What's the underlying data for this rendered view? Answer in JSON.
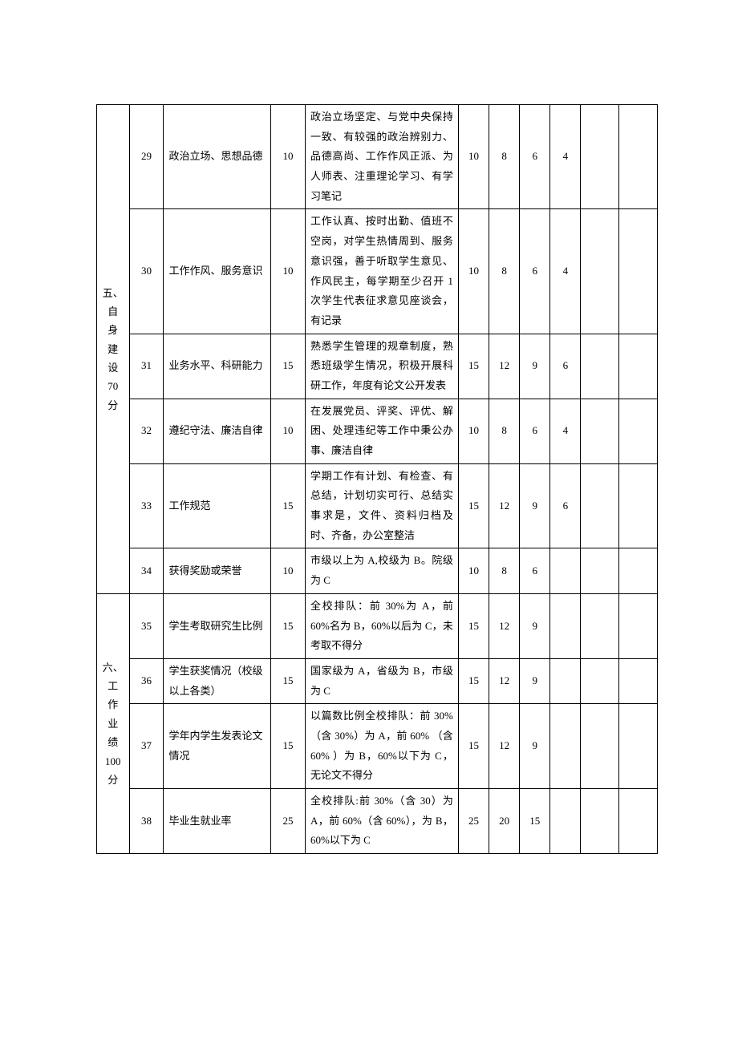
{
  "sections": [
    {
      "category": "五、自身建设70分",
      "category_lines": [
        "五、",
        "自",
        "身",
        "建",
        "设",
        "70",
        "分"
      ],
      "rows": [
        {
          "num": "29",
          "item": "政治立场、思想品德",
          "pts": "10",
          "desc": "政治立场坚定、与党中央保持一致、有较强的政治辨别力、品德高尚、工作作风正派、为人师表、注重理论学习、有学习笔记",
          "s1": "10",
          "s2": "8",
          "s3": "6",
          "s4": "4"
        },
        {
          "num": "30",
          "item": "工作作风、服务意识",
          "pts": "10",
          "desc": "工作认真、按时出勤、值班不空岗，对学生热情周到、服务意识强，善于听取学生意见、作风民主，每学期至少召开 1 次学生代表征求意见座谈会，有记录",
          "s1": "10",
          "s2": "8",
          "s3": "6",
          "s4": "4"
        },
        {
          "num": "31",
          "item": "业务水平、科研能力",
          "pts": "15",
          "desc": "熟悉学生管理的规章制度，熟悉班级学生情况，积极开展科研工作，年度有论文公开发表",
          "s1": "15",
          "s2": "12",
          "s3": "9",
          "s4": "6"
        },
        {
          "num": "32",
          "item": "遵纪守法、廉洁自律",
          "pts": "10",
          "desc": "在发展党员、评奖、评优、解困、处理违纪等工作中秉公办事、廉洁自律",
          "s1": "10",
          "s2": "8",
          "s3": "6",
          "s4": "4"
        },
        {
          "num": "33",
          "item": "工作规范",
          "pts": "15",
          "desc": "学期工作有计划、有检查、有总结，计划切实可行、总结实事求是，文件、资料归档及时、齐备，办公室整洁",
          "s1": "15",
          "s2": "12",
          "s3": "9",
          "s4": "6"
        },
        {
          "num": "34",
          "item": "获得奖励或荣誉",
          "pts": "10",
          "desc": "市级以上为 A,校级为 B。院级为 C",
          "s1": "10",
          "s2": "8",
          "s3": "6",
          "s4": ""
        }
      ]
    },
    {
      "category": "六、工作业绩100分",
      "category_lines": [
        "六、",
        "工",
        "作",
        "业",
        "绩",
        "100",
        "分"
      ],
      "rows": [
        {
          "num": "35",
          "item": "学生考取研究生比例",
          "pts": "15",
          "desc": "全校排队：前 30%为 A，前 60%名为 B，60%以后为 C，未考取不得分",
          "s1": "15",
          "s2": "12",
          "s3": "9",
          "s4": ""
        },
        {
          "num": "36",
          "item": "学生获奖情况（校级以上各类）",
          "pts": "15",
          "desc": "国家级为 A，省级为 B，市级为 C",
          "s1": "15",
          "s2": "12",
          "s3": "9",
          "s4": ""
        },
        {
          "num": "37",
          "item": "学年内学生发表论文情况",
          "pts": "15",
          "desc": "以篇数比例全校排队：前 30%（含 30%）为 A，前 60% （含 60% ）为 B，60%以下为 C，无论文不得分",
          "s1": "15",
          "s2": "12",
          "s3": "9",
          "s4": ""
        },
        {
          "num": "38",
          "item": "毕业生就业率",
          "pts": "25",
          "desc": "全校排队:前 30%（含 30）为 A，前 60%（含 60%），为 B，60%以下为 C",
          "s1": "25",
          "s2": "20",
          "s3": "15",
          "s4": ""
        }
      ]
    }
  ]
}
